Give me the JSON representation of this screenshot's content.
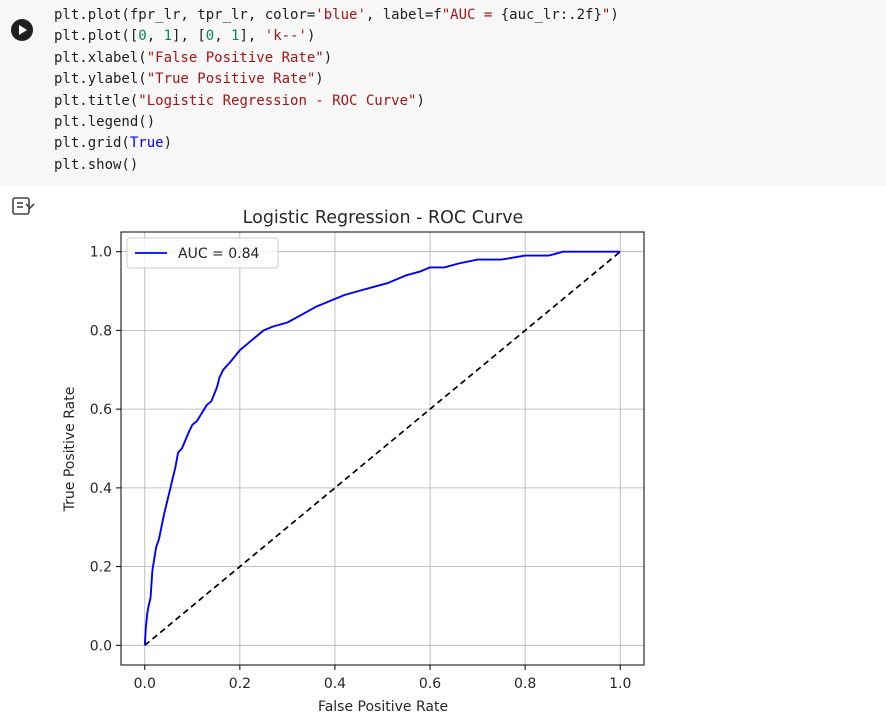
{
  "code_cell": {
    "lines": [
      [
        {
          "t": "plt.plot(fpr_lr, tpr_lr, color=",
          "c": ""
        },
        {
          "t": "'blue'",
          "c": "s"
        },
        {
          "t": ", label=f",
          "c": ""
        },
        {
          "t": "\"AUC = ",
          "c": "s"
        },
        {
          "t": "{auc_lr:.2f}",
          "c": ""
        },
        {
          "t": "\"",
          "c": "s"
        },
        {
          "t": ")",
          "c": ""
        }
      ],
      [
        {
          "t": "plt.plot([",
          "c": ""
        },
        {
          "t": "0",
          "c": "n"
        },
        {
          "t": ", ",
          "c": ""
        },
        {
          "t": "1",
          "c": "n"
        },
        {
          "t": "], [",
          "c": ""
        },
        {
          "t": "0",
          "c": "n"
        },
        {
          "t": ", ",
          "c": ""
        },
        {
          "t": "1",
          "c": "n"
        },
        {
          "t": "], ",
          "c": ""
        },
        {
          "t": "'k--'",
          "c": "s"
        },
        {
          "t": ")",
          "c": ""
        }
      ],
      [
        {
          "t": "plt.xlabel(",
          "c": ""
        },
        {
          "t": "\"False Positive Rate\"",
          "c": "s"
        },
        {
          "t": ")",
          "c": ""
        }
      ],
      [
        {
          "t": "plt.ylabel(",
          "c": ""
        },
        {
          "t": "\"True Positive Rate\"",
          "c": "s"
        },
        {
          "t": ")",
          "c": ""
        }
      ],
      [
        {
          "t": "plt.title(",
          "c": ""
        },
        {
          "t": "\"Logistic Regression - ROC Curve\"",
          "c": "s"
        },
        {
          "t": ")",
          "c": ""
        }
      ],
      [
        {
          "t": "plt.legend()",
          "c": ""
        }
      ],
      [
        {
          "t": "plt.grid(",
          "c": ""
        },
        {
          "t": "True",
          "c": "k"
        },
        {
          "t": ")",
          "c": ""
        }
      ],
      [
        {
          "t": "plt.show()",
          "c": ""
        }
      ]
    ]
  },
  "icons": {
    "run": "play-icon",
    "output_toggle": "output-toggle-icon"
  },
  "chart_data": {
    "type": "line",
    "title": "Logistic Regression - ROC Curve",
    "xlabel": "False Positive Rate",
    "ylabel": "True Positive Rate",
    "xlim": [
      -0.05,
      1.05
    ],
    "ylim": [
      -0.05,
      1.05
    ],
    "xticks": [
      "0.0",
      "0.2",
      "0.4",
      "0.6",
      "0.8",
      "1.0"
    ],
    "yticks": [
      "0.0",
      "0.2",
      "0.4",
      "0.6",
      "0.8",
      "1.0"
    ],
    "grid": true,
    "legend_position": "top-left",
    "series": [
      {
        "name": "AUC = 0.84",
        "color": "#0000ff",
        "style": "solid",
        "x": [
          0.0,
          0.002,
          0.005,
          0.008,
          0.012,
          0.016,
          0.02,
          0.024,
          0.03,
          0.035,
          0.04,
          0.046,
          0.052,
          0.058,
          0.064,
          0.07,
          0.078,
          0.085,
          0.092,
          0.1,
          0.11,
          0.12,
          0.13,
          0.14,
          0.15,
          0.153,
          0.157,
          0.165,
          0.18,
          0.2,
          0.22,
          0.25,
          0.27,
          0.3,
          0.33,
          0.36,
          0.38,
          0.4,
          0.42,
          0.45,
          0.48,
          0.51,
          0.55,
          0.58,
          0.6,
          0.63,
          0.66,
          0.7,
          0.75,
          0.8,
          0.85,
          0.88,
          0.92,
          0.96,
          1.0
        ],
        "y": [
          0.0,
          0.04,
          0.08,
          0.1,
          0.12,
          0.19,
          0.22,
          0.25,
          0.27,
          0.3,
          0.33,
          0.36,
          0.39,
          0.42,
          0.45,
          0.49,
          0.5,
          0.52,
          0.54,
          0.56,
          0.57,
          0.59,
          0.61,
          0.62,
          0.65,
          0.66,
          0.68,
          0.7,
          0.72,
          0.75,
          0.77,
          0.8,
          0.81,
          0.82,
          0.84,
          0.86,
          0.87,
          0.88,
          0.89,
          0.9,
          0.91,
          0.92,
          0.94,
          0.95,
          0.96,
          0.96,
          0.97,
          0.98,
          0.98,
          0.99,
          0.99,
          1.0,
          1.0,
          1.0,
          1.0
        ]
      },
      {
        "name": "",
        "color": "#000000",
        "style": "dashed",
        "x": [
          0,
          1
        ],
        "y": [
          0,
          1
        ]
      }
    ]
  }
}
